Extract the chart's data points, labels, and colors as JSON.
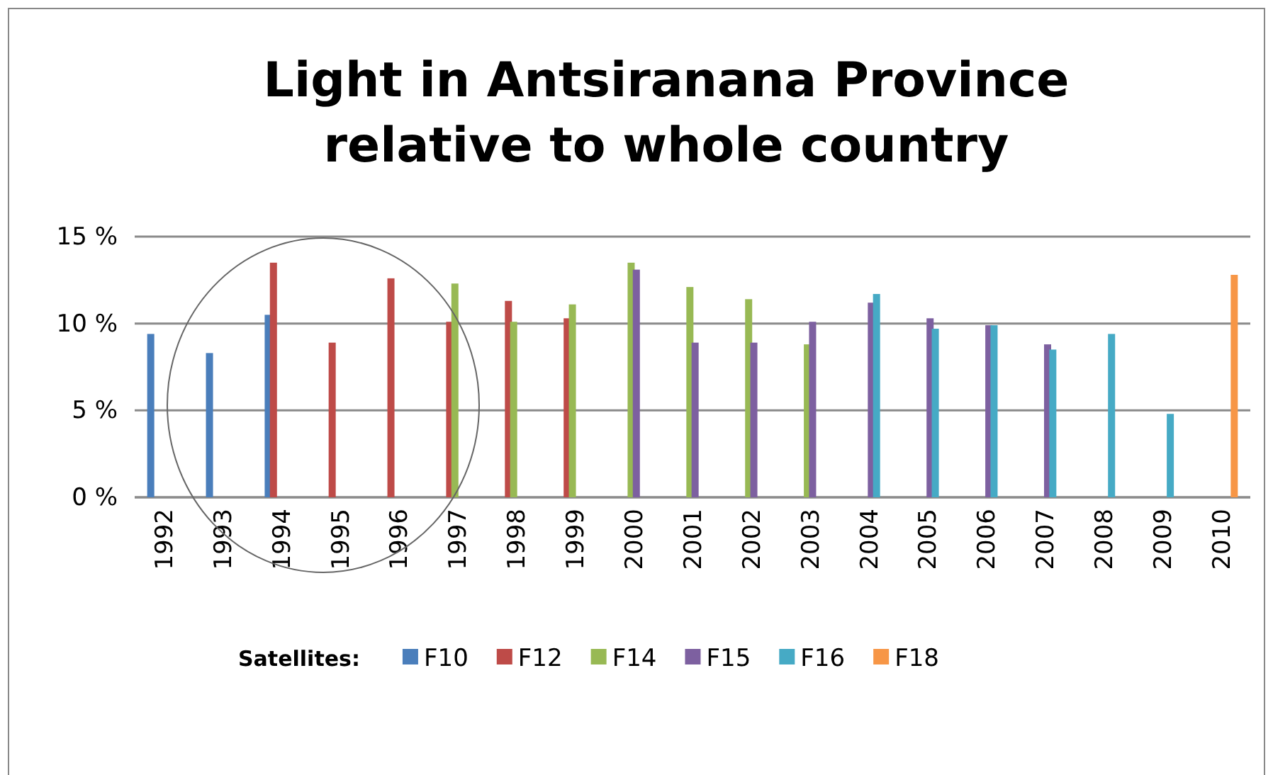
{
  "chart_data": {
    "type": "bar",
    "title": "Light in Antsiranana Province relative to whole country",
    "legend_title": "Satellites:",
    "legend": "bottom",
    "grid": "y",
    "categories": [
      "1992",
      "1993",
      "1994",
      "1995",
      "1996",
      "1997",
      "1998",
      "1999",
      "2000",
      "2001",
      "2002",
      "2003",
      "2004",
      "2005",
      "2006",
      "2007",
      "2008",
      "2009",
      "2010"
    ],
    "ylim": [
      0,
      15
    ],
    "yticks": [
      {
        "value": 0,
        "label": "0 %"
      },
      {
        "value": 5,
        "label": "5 %"
      },
      {
        "value": 10,
        "label": "10 %"
      },
      {
        "value": 15,
        "label": "15 %"
      }
    ],
    "series": [
      {
        "name": "F10",
        "color": "#4a7ebb",
        "values": [
          9.4,
          8.3,
          10.5,
          null,
          null,
          null,
          null,
          null,
          null,
          null,
          null,
          null,
          null,
          null,
          null,
          null,
          null,
          null,
          null
        ]
      },
      {
        "name": "F12",
        "color": "#be4b48",
        "values": [
          null,
          null,
          13.5,
          8.9,
          12.6,
          10.1,
          11.3,
          10.3,
          null,
          null,
          null,
          null,
          null,
          null,
          null,
          null,
          null,
          null,
          null
        ]
      },
      {
        "name": "F14",
        "color": "#98b954",
        "values": [
          null,
          null,
          null,
          null,
          null,
          12.3,
          10.1,
          11.1,
          13.5,
          12.1,
          11.4,
          8.8,
          null,
          null,
          null,
          null,
          null,
          null,
          null
        ]
      },
      {
        "name": "F15",
        "color": "#7d60a0",
        "values": [
          null,
          null,
          null,
          null,
          null,
          null,
          null,
          null,
          13.1,
          8.9,
          8.9,
          10.1,
          11.2,
          10.3,
          9.9,
          8.8,
          null,
          null,
          null
        ]
      },
      {
        "name": "F16",
        "color": "#46aac5",
        "values": [
          null,
          null,
          null,
          null,
          null,
          null,
          null,
          null,
          null,
          null,
          null,
          null,
          11.7,
          9.7,
          9.9,
          8.5,
          9.4,
          4.8,
          null
        ]
      },
      {
        "name": "F18",
        "color": "#f79646",
        "values": [
          null,
          null,
          null,
          null,
          null,
          null,
          null,
          null,
          null,
          null,
          null,
          null,
          null,
          null,
          null,
          null,
          null,
          null,
          12.8
        ]
      }
    ]
  }
}
